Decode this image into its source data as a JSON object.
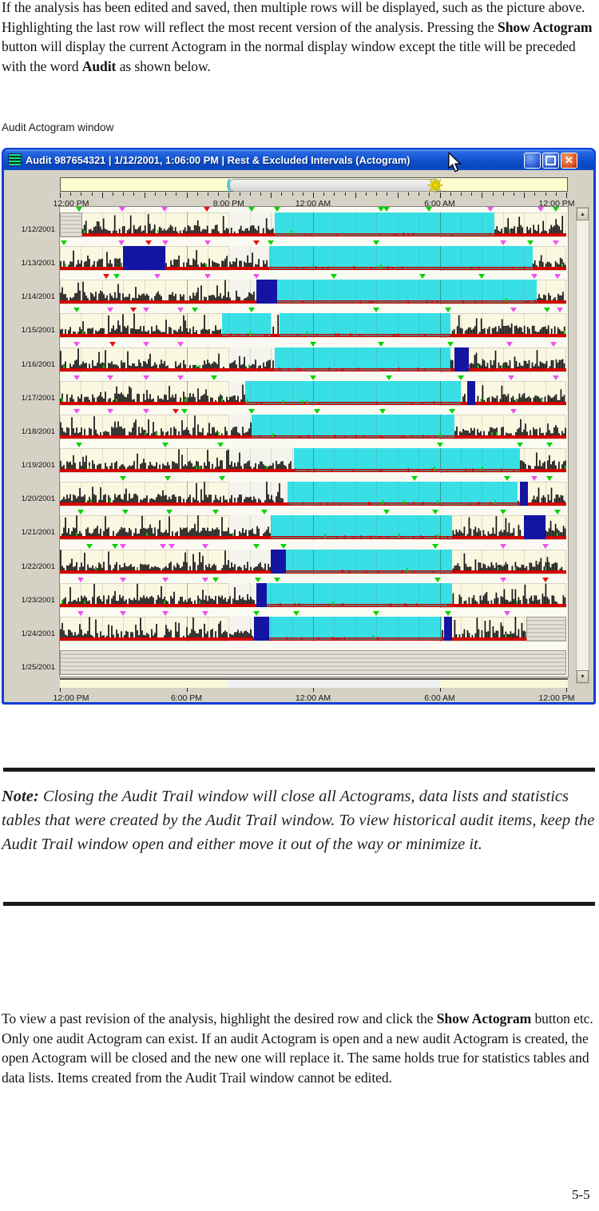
{
  "colors": {
    "titlebar_blue": "#0c50cc",
    "close_orange": "#df5426",
    "rest_cyan": "#38e0e6",
    "excluded_navy": "#1414a2",
    "baseline_red": "#d40000",
    "marker_green": "#00d400",
    "marker_magenta": "#f050f0",
    "marker_red": "#e81010",
    "row_cream": "#fbf8e2",
    "slider_yellow": "#ffffce"
  },
  "icons": {
    "app": "striped-chart",
    "minimize": "_",
    "maximize": "□",
    "close": "✕",
    "sun": "8-point-star",
    "scroll_up": "▲",
    "scroll_down": "▼",
    "bracket": "("
  },
  "doc": {
    "para1": [
      {
        "t": "If  the analysis has been edited and saved, then multiple rows will be displayed, such as the picture above. Highlighting the last row will reflect the most recent version of the analysis. Pressing the "
      },
      {
        "t": "Show Actogram",
        "b": true
      },
      {
        "t": " button will display the current Actogram in the normal display window except the title will be preceded with the word "
      },
      {
        "t": "Audit",
        "b": true
      },
      {
        "t": " as shown below."
      }
    ],
    "caption": "Audit Actogram window",
    "note": [
      {
        "t": "Note: ",
        "b": true
      },
      {
        "t": "Closing the Audit Trail window will close all Actograms, data lists and statistics tables that were created by the Audit Trail window. To view historical audit items, keep the Audit Trail window open and either move it out of the way or minimize it."
      }
    ],
    "para2": [
      {
        "t": "To view a past revision of the analysis, highlight the desired row and click the "
      },
      {
        "t": "Show Actogram",
        "b": true
      },
      {
        "t": " button etc. Only one audit Actogram can exist. If an audit Actogram is open and a new audit Actogram is created, the open Actogram will be closed and the new one will replace it. The same holds true for statistics tables and data lists. Items created from the Audit Trail window cannot be edited."
      }
    ],
    "page_number": "5-5"
  },
  "window": {
    "title": "Audit 987654321  |  1/12/2001, 1:06:00 PM  |  Rest & Excluded Intervals (Actogram)",
    "slider": {
      "range_start_hour": 8,
      "range_end_hour": 17.9,
      "sun_hour": 17.75
    },
    "top_axis_labels": [
      {
        "text": "12:00 PM",
        "hour": 0
      },
      {
        "text": "8:00 PM",
        "hour": 8
      },
      {
        "text": "12:00 AM",
        "hour": 12
      },
      {
        "text": "6:00 AM",
        "hour": 18
      },
      {
        "text": "12:00 PM",
        "hour": 24
      }
    ],
    "bottom_axis_labels": [
      {
        "text": "12:00 PM",
        "hour": 0
      },
      {
        "text": "6:00 PM",
        "hour": 6
      },
      {
        "text": "12:00 AM",
        "hour": 12
      },
      {
        "text": "6:00 AM",
        "hour": 18
      },
      {
        "text": "12:00 PM",
        "hour": 24
      }
    ]
  },
  "chart_data": {
    "type": "actogram",
    "x_axis": {
      "start_label": "12:00 PM",
      "end_label": "12:00 PM",
      "span_hours": 24,
      "night_band_hours": [
        8,
        18
      ]
    },
    "legend_meaning": {
      "cyan_blocks": "rest intervals",
      "navy_blocks": "excluded intervals",
      "black_spikes": "activity",
      "gray_blocks": "no data"
    },
    "rows": [
      {
        "date": "1/12/2001",
        "nodata": [
          [
            0,
            1.05
          ]
        ],
        "rest": [
          [
            10.2,
            20.6
          ]
        ],
        "excluded": [],
        "markers": [
          [
            "g",
            0.9
          ],
          [
            "m",
            2.95
          ],
          [
            "m",
            4.95
          ],
          [
            "r",
            6.95
          ],
          [
            "g",
            9.1
          ],
          [
            "g",
            10.3
          ],
          [
            "g",
            15.2
          ],
          [
            "g",
            15.5
          ],
          [
            "g",
            17.5
          ],
          [
            "m",
            20.4
          ],
          [
            "m",
            22.8
          ],
          [
            "g",
            23.5
          ]
        ]
      },
      {
        "date": "1/13/2001",
        "nodata": [],
        "rest": [
          [
            9.9,
            22.4
          ]
        ],
        "excluded": [
          [
            3.0,
            5.0
          ]
        ],
        "markers": [
          [
            "g",
            0.2
          ],
          [
            "m",
            2.9
          ],
          [
            "r",
            4.2
          ],
          [
            "m",
            5.0
          ],
          [
            "m",
            7.0
          ],
          [
            "r",
            9.3
          ],
          [
            "g",
            10.0
          ],
          [
            "g",
            15.0
          ],
          [
            "m",
            21.0
          ],
          [
            "g",
            22.3
          ],
          [
            "m",
            23.5
          ]
        ]
      },
      {
        "date": "1/14/2001",
        "nodata": [],
        "rest": [
          [
            10.3,
            22.6
          ]
        ],
        "excluded": [
          [
            9.3,
            10.3
          ]
        ],
        "markers": [
          [
            "r",
            2.2
          ],
          [
            "g",
            2.7
          ],
          [
            "m",
            4.6
          ],
          [
            "m",
            7.0
          ],
          [
            "m",
            9.3
          ],
          [
            "g",
            13.0
          ],
          [
            "g",
            17.2
          ],
          [
            "g",
            20.0
          ],
          [
            "m",
            22.5
          ],
          [
            "m",
            23.6
          ]
        ]
      },
      {
        "date": "1/15/2001",
        "nodata": [],
        "rest": [
          [
            7.7,
            10.0
          ],
          [
            10.4,
            18.5
          ]
        ],
        "excluded": [],
        "markers": [
          [
            "g",
            0.8
          ],
          [
            "m",
            2.4
          ],
          [
            "r",
            3.5
          ],
          [
            "m",
            4.1
          ],
          [
            "m",
            5.7
          ],
          [
            "g",
            6.4
          ],
          [
            "g",
            9.1
          ],
          [
            "g",
            15.0
          ],
          [
            "g",
            18.4
          ],
          [
            "m",
            21.5
          ],
          [
            "g",
            23.1
          ],
          [
            "m",
            23.7
          ]
        ]
      },
      {
        "date": "1/16/2001",
        "nodata": [],
        "rest": [
          [
            10.2,
            18.5
          ]
        ],
        "excluded": [
          [
            18.7,
            19.4
          ]
        ],
        "markers": [
          [
            "m",
            0.8
          ],
          [
            "r",
            2.5
          ],
          [
            "m",
            4.1
          ],
          [
            "m",
            5.7
          ],
          [
            "g",
            12.0
          ],
          [
            "g",
            15.2
          ],
          [
            "g",
            18.5
          ],
          [
            "m",
            21.3
          ],
          [
            "m",
            23.4
          ]
        ]
      },
      {
        "date": "1/17/2001",
        "nodata": [],
        "rest": [
          [
            8.8,
            19.0
          ]
        ],
        "excluded": [
          [
            19.3,
            19.7
          ]
        ],
        "markers": [
          [
            "m",
            0.8
          ],
          [
            "m",
            2.4
          ],
          [
            "m",
            4.1
          ],
          [
            "m",
            5.7
          ],
          [
            "g",
            7.3
          ],
          [
            "g",
            12.0
          ],
          [
            "g",
            15.6
          ],
          [
            "g",
            19.0
          ],
          [
            "m",
            21.4
          ],
          [
            "m",
            23.5
          ]
        ]
      },
      {
        "date": "1/18/2001",
        "nodata": [],
        "rest": [
          [
            9.1,
            18.7
          ]
        ],
        "excluded": [],
        "markers": [
          [
            "m",
            0.8
          ],
          [
            "m",
            2.4
          ],
          [
            "m",
            4.1
          ],
          [
            "r",
            5.5
          ],
          [
            "g",
            5.9
          ],
          [
            "g",
            9.1
          ],
          [
            "g",
            12.2
          ],
          [
            "g",
            15.3
          ],
          [
            "g",
            18.6
          ],
          [
            "m",
            21.5
          ]
        ]
      },
      {
        "date": "1/19/2001",
        "nodata": [],
        "rest": [
          [
            11.1,
            21.8
          ]
        ],
        "excluded": [],
        "markers": [
          [
            "g",
            0.9
          ],
          [
            "g",
            5.0
          ],
          [
            "g",
            7.6
          ],
          [
            "g",
            18.0
          ],
          [
            "g",
            21.8
          ],
          [
            "g",
            23.2
          ]
        ]
      },
      {
        "date": "1/20/2001",
        "nodata": [],
        "rest": [
          [
            10.8,
            21.7
          ]
        ],
        "excluded": [
          [
            21.8,
            22.2
          ]
        ],
        "markers": [
          [
            "g",
            3.0
          ],
          [
            "g",
            5.1
          ],
          [
            "g",
            7.7
          ],
          [
            "g",
            16.8
          ],
          [
            "g",
            21.2
          ],
          [
            "m",
            22.5
          ],
          [
            "g",
            23.2
          ]
        ]
      },
      {
        "date": "1/21/2001",
        "nodata": [],
        "rest": [
          [
            10.0,
            18.6
          ]
        ],
        "excluded": [
          [
            22.0,
            23.0
          ]
        ],
        "markers": [
          [
            "g",
            1.0
          ],
          [
            "g",
            3.1
          ],
          [
            "g",
            5.2
          ],
          [
            "g",
            7.4
          ],
          [
            "g",
            9.7
          ],
          [
            "g",
            15.5
          ],
          [
            "g",
            17.8
          ],
          [
            "g",
            21.0
          ],
          [
            "g",
            23.6
          ]
        ]
      },
      {
        "date": "1/22/2001",
        "nodata": [],
        "rest": [
          [
            10.7,
            18.6
          ]
        ],
        "excluded": [
          [
            10.0,
            10.7
          ]
        ],
        "markers": [
          [
            "g",
            1.4
          ],
          [
            "g",
            2.6
          ],
          [
            "m",
            3.0
          ],
          [
            "m",
            4.9
          ],
          [
            "m",
            5.3
          ],
          [
            "m",
            6.9
          ],
          [
            "g",
            9.3
          ],
          [
            "g",
            10.6
          ],
          [
            "g",
            17.8
          ],
          [
            "m",
            21.0
          ],
          [
            "m",
            23.0
          ]
        ]
      },
      {
        "date": "1/23/2001",
        "nodata": [],
        "rest": [
          [
            9.8,
            18.6
          ]
        ],
        "excluded": [
          [
            9.3,
            9.8
          ]
        ],
        "markers": [
          [
            "m",
            1.0
          ],
          [
            "m",
            3.0
          ],
          [
            "m",
            5.0
          ],
          [
            "m",
            6.9
          ],
          [
            "g",
            7.4
          ],
          [
            "g",
            9.4
          ],
          [
            "g",
            10.3
          ],
          [
            "g",
            17.9
          ],
          [
            "m",
            21.0
          ],
          [
            "r",
            23.0
          ]
        ]
      },
      {
        "date": "1/24/2001",
        "nodata": [
          [
            22.1,
            24
          ]
        ],
        "rest": [
          [
            9.9,
            18.1
          ]
        ],
        "excluded": [
          [
            9.2,
            9.9
          ],
          [
            18.2,
            18.6
          ]
        ],
        "markers": [
          [
            "m",
            1.0
          ],
          [
            "m",
            3.0
          ],
          [
            "m",
            5.0
          ],
          [
            "m",
            6.9
          ],
          [
            "g",
            9.3
          ],
          [
            "g",
            11.2
          ],
          [
            "g",
            15.0
          ],
          [
            "g",
            18.4
          ],
          [
            "m",
            21.2
          ]
        ]
      },
      {
        "date": "1/25/2001",
        "nodata": [
          [
            0,
            24
          ]
        ],
        "rest": [],
        "excluded": [],
        "markers": []
      }
    ]
  }
}
